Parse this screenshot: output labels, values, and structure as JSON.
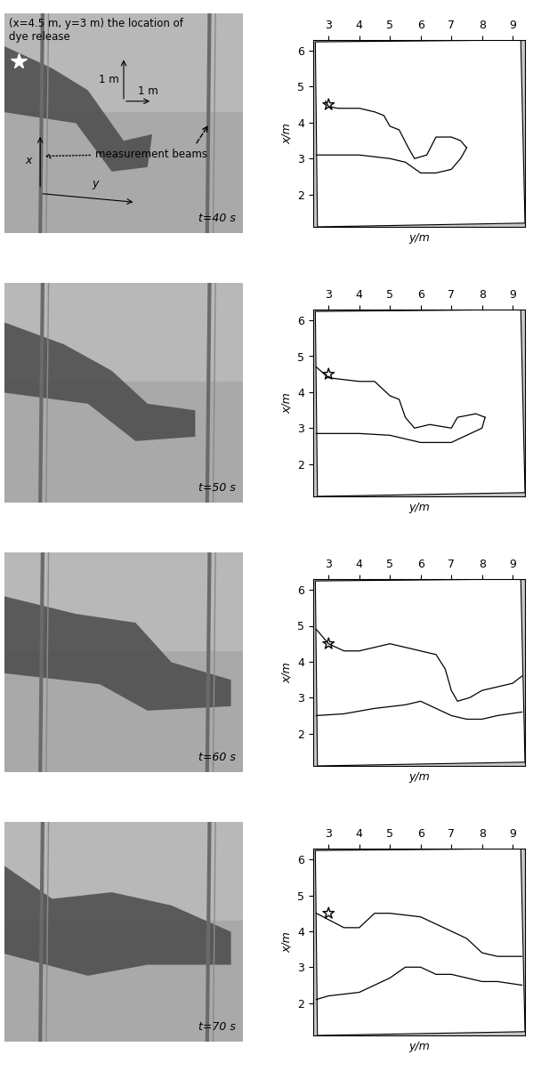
{
  "photos": [
    {
      "time_label": "t=40 s"
    },
    {
      "time_label": "t=50 s"
    },
    {
      "time_label": "t=60 s"
    },
    {
      "time_label": "t=70 s"
    }
  ],
  "annotations": {
    "release": "(x=4.5 m, y=3 m) the location of\ndye release",
    "scale_x": "1 m",
    "scale_y": "1 m",
    "beams": "measurement beams",
    "x_axis": "x",
    "y_axis": "y"
  },
  "chart_data": [
    {
      "type": "line",
      "xlabel": "y/m",
      "ylabel": "x/m",
      "xlim": [
        2.5,
        9.4
      ],
      "ylim": [
        1.1,
        6.3
      ],
      "xticks": [
        3,
        4,
        5,
        6,
        7,
        8,
        9
      ],
      "yticks": [
        2,
        3,
        4,
        5,
        6
      ],
      "series": [
        {
          "color": "#000000",
          "x": [
            2.9,
            3.0,
            3.3,
            4.0,
            4.5,
            4.8,
            5.0,
            5.3,
            5.6,
            5.8,
            6.2,
            6.5,
            7.0,
            7.3,
            7.5
          ],
          "values": [
            4.6,
            4.45,
            4.4,
            4.4,
            4.3,
            4.2,
            3.9,
            3.8,
            3.3,
            3.0,
            3.1,
            3.6,
            3.6,
            3.5,
            3.3
          ]
        },
        {
          "color": "#000000",
          "x": [
            2.6,
            4.0,
            5.0,
            5.5,
            6.0,
            6.5,
            7.0,
            7.3,
            7.5
          ],
          "values": [
            3.1,
            3.1,
            3.0,
            2.9,
            2.6,
            2.6,
            2.7,
            3.0,
            3.3
          ]
        },
        {
          "type": "scatter",
          "marker": "star",
          "color": "#000000",
          "x": [
            3
          ],
          "values": [
            4.5
          ]
        }
      ]
    },
    {
      "type": "line",
      "xlabel": "y/m",
      "ylabel": "x/m",
      "xlim": [
        2.5,
        9.4
      ],
      "ylim": [
        1.1,
        6.3
      ],
      "xticks": [
        3,
        4,
        5,
        6,
        7,
        8,
        9
      ],
      "yticks": [
        2,
        3,
        4,
        5,
        6
      ],
      "series": [
        {
          "color": "#000000",
          "x": [
            2.6,
            3.0,
            4.0,
            4.5,
            5.0,
            5.3,
            5.5,
            5.8,
            6.3,
            7.0,
            7.2,
            7.8,
            8.1
          ],
          "values": [
            4.7,
            4.4,
            4.3,
            4.3,
            3.9,
            3.8,
            3.3,
            3.0,
            3.1,
            3.0,
            3.3,
            3.4,
            3.3
          ]
        },
        {
          "color": "#000000",
          "x": [
            2.6,
            4.0,
            5.0,
            5.5,
            6.0,
            6.5,
            7.0,
            7.5,
            8.0,
            8.1
          ],
          "values": [
            2.85,
            2.85,
            2.8,
            2.7,
            2.6,
            2.6,
            2.6,
            2.8,
            3.0,
            3.3
          ]
        },
        {
          "type": "scatter",
          "marker": "star",
          "color": "#000000",
          "x": [
            3
          ],
          "values": [
            4.5
          ]
        }
      ]
    },
    {
      "type": "line",
      "xlabel": "y/m",
      "ylabel": "x/m",
      "xlim": [
        2.5,
        9.4
      ],
      "ylim": [
        1.1,
        6.3
      ],
      "xticks": [
        3,
        4,
        5,
        6,
        7,
        8,
        9
      ],
      "yticks": [
        2,
        3,
        4,
        5,
        6
      ],
      "series": [
        {
          "color": "#000000",
          "x": [
            2.6,
            3.0,
            3.5,
            4.0,
            4.5,
            5.0,
            5.5,
            6.0,
            6.5,
            6.8,
            7.0,
            7.2,
            7.6,
            8.0,
            8.5,
            9.0,
            9.3
          ],
          "values": [
            4.9,
            4.5,
            4.3,
            4.3,
            4.4,
            4.5,
            4.4,
            4.3,
            4.2,
            3.8,
            3.2,
            2.9,
            3.0,
            3.2,
            3.3,
            3.4,
            3.6
          ]
        },
        {
          "color": "#000000",
          "x": [
            2.6,
            3.5,
            4.5,
            5.5,
            6.0,
            6.5,
            7.0,
            7.5,
            8.0,
            8.5,
            9.3
          ],
          "values": [
            2.5,
            2.55,
            2.7,
            2.8,
            2.9,
            2.7,
            2.5,
            2.4,
            2.4,
            2.5,
            2.6
          ]
        },
        {
          "type": "scatter",
          "marker": "star",
          "color": "#000000",
          "x": [
            3
          ],
          "values": [
            4.5
          ]
        }
      ]
    },
    {
      "type": "line",
      "xlabel": "y/m",
      "ylabel": "x/m",
      "xlim": [
        2.5,
        9.4
      ],
      "ylim": [
        1.1,
        6.3
      ],
      "xticks": [
        3,
        4,
        5,
        6,
        7,
        8,
        9
      ],
      "yticks": [
        2,
        3,
        4,
        5,
        6
      ],
      "series": [
        {
          "color": "#000000",
          "x": [
            2.6,
            3.5,
            4.0,
            4.5,
            5.0,
            6.0,
            6.5,
            7.0,
            7.5,
            8.0,
            8.5,
            9.3
          ],
          "values": [
            4.5,
            4.1,
            4.1,
            4.5,
            4.5,
            4.4,
            4.2,
            4.0,
            3.8,
            3.4,
            3.3,
            3.3
          ]
        },
        {
          "color": "#000000",
          "x": [
            2.6,
            3.0,
            4.0,
            4.5,
            5.0,
            5.5,
            6.0,
            6.5,
            7.0,
            7.5,
            8.0,
            8.5,
            9.3
          ],
          "values": [
            2.1,
            2.2,
            2.3,
            2.5,
            2.7,
            3.0,
            3.0,
            2.8,
            2.8,
            2.7,
            2.6,
            2.6,
            2.5
          ]
        },
        {
          "type": "scatter",
          "marker": "star",
          "color": "#000000",
          "x": [
            3
          ],
          "values": [
            4.5
          ]
        }
      ]
    }
  ]
}
